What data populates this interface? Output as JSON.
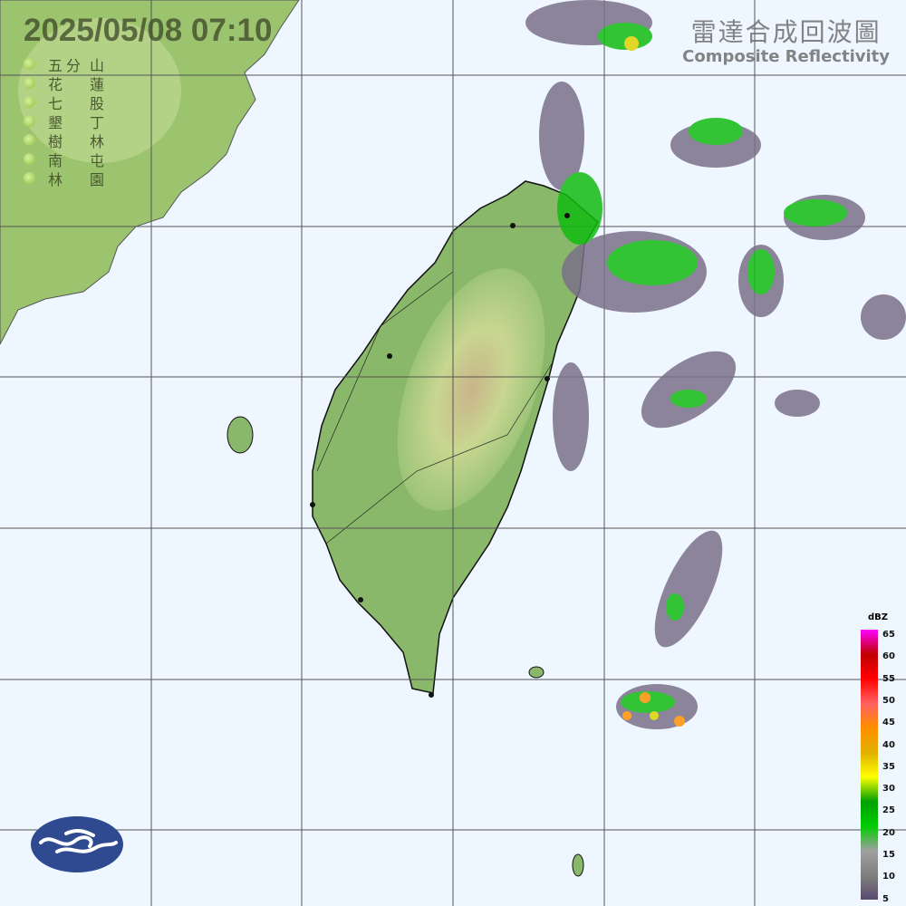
{
  "header": {
    "datetime": "2025/05/08  07:10"
  },
  "title": {
    "zh": "雷達合成回波圖",
    "en": "Composite Reflectivity"
  },
  "stations": [
    {
      "a": "五",
      "b": "分",
      "c": "山"
    },
    {
      "a": "花",
      "b": "",
      "c": "蓮"
    },
    {
      "a": "七",
      "b": "",
      "c": "股"
    },
    {
      "a": "墾",
      "b": "",
      "c": "丁"
    },
    {
      "a": "樹",
      "b": "",
      "c": "林"
    },
    {
      "a": "南",
      "b": "",
      "c": "屯"
    },
    {
      "a": "林",
      "b": "",
      "c": "園"
    }
  ],
  "legend": {
    "unit": "dBZ",
    "ticks": [
      "65",
      "60",
      "55",
      "50",
      "45",
      "40",
      "35",
      "30",
      "25",
      "20",
      "15",
      "10",
      "5"
    ],
    "colors": [
      "#ff00ff",
      "#c00000",
      "#ff0000",
      "#ff6060",
      "#ff9000",
      "#e0b000",
      "#ffff00",
      "#00a000",
      "#00cc00",
      "#a0a0a0",
      "#808080",
      "#5a4a70"
    ]
  },
  "colors": {
    "sea": "#eef6ff",
    "land": "#8ab86a",
    "echo_gray": "#7a7088",
    "echo_green": "#11bb11"
  }
}
